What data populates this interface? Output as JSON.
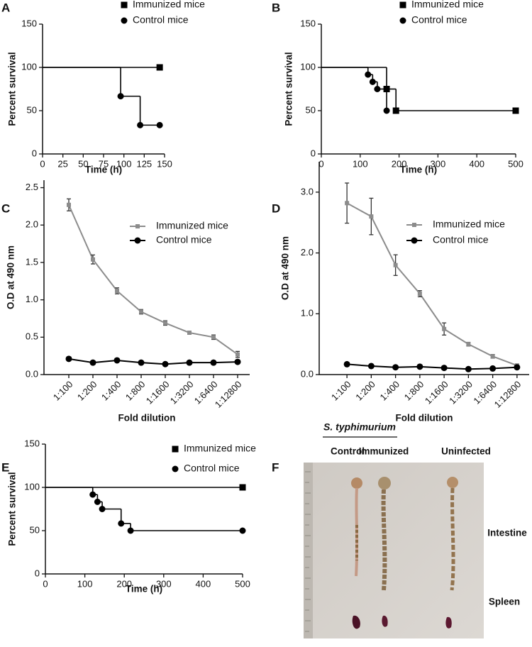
{
  "chart_data": [
    {
      "type": "step",
      "panel": "A",
      "x_label": "Time (h)",
      "y_label": "Percent survival",
      "xlim": [
        0,
        150
      ],
      "xticks": [
        0,
        25,
        50,
        75,
        100,
        125,
        150
      ],
      "ylim": [
        0,
        150
      ],
      "yticks": [
        0,
        50,
        100,
        150
      ],
      "series": [
        {
          "name": "Immunized mice",
          "color": "#000000",
          "marker": "square",
          "x": [
            0,
            144
          ],
          "values": [
            100,
            100
          ]
        },
        {
          "name": "Control mice",
          "color": "#000000",
          "marker": "circle",
          "x": [
            0,
            96,
            120,
            144
          ],
          "values": [
            100,
            66.7,
            33.3,
            33.3
          ]
        }
      ]
    },
    {
      "type": "step",
      "panel": "B",
      "x_label": "Time (h)",
      "y_label": "Percent survival",
      "xlim": [
        0,
        500
      ],
      "xticks": [
        0,
        100,
        200,
        300,
        400,
        500
      ],
      "ylim": [
        0,
        150
      ],
      "yticks": [
        0,
        50,
        100,
        150
      ],
      "series": [
        {
          "name": "Immunized mice",
          "color": "#000000",
          "marker": "square",
          "x": [
            0,
            168,
            192,
            500
          ],
          "values": [
            100,
            75,
            50,
            50
          ]
        },
        {
          "name": "Control mice",
          "color": "#000000",
          "marker": "circle",
          "x": [
            0,
            120,
            132,
            144,
            168
          ],
          "values": [
            100,
            91.7,
            83.3,
            75,
            50
          ]
        }
      ]
    },
    {
      "type": "line",
      "panel": "C",
      "x_label": "Fold dilution",
      "y_label": "O.D at 490 nm",
      "categories": [
        "1:100",
        "1:200",
        "1:400",
        "1:800",
        "1:1600",
        "1:3200",
        "1:6400",
        "1:12800"
      ],
      "ylim": [
        0,
        2.6
      ],
      "yticks": [
        {
          "value": 0,
          "label": "0.0"
        },
        {
          "value": 0.5,
          "label": "0.5"
        },
        {
          "value": 1,
          "label": "1.0"
        },
        {
          "value": 1.5,
          "label": "1.5"
        },
        {
          "value": 2,
          "label": "2.0"
        },
        {
          "value": 2.5,
          "label": "2.5"
        }
      ],
      "series": [
        {
          "name": "Immunized mice",
          "color": "#8c8c8c",
          "marker": "square",
          "values": [
            2.27,
            1.54,
            1.12,
            0.84,
            0.69,
            0.56,
            0.5,
            0.27
          ],
          "errors": [
            0.08,
            0.06,
            0.04,
            0.03,
            0.03,
            0.02,
            0.03,
            0.04
          ]
        },
        {
          "name": "Control mice",
          "color": "#000000",
          "marker": "circle",
          "values": [
            0.21,
            0.16,
            0.19,
            0.16,
            0.14,
            0.16,
            0.16,
            0.17
          ]
        }
      ]
    },
    {
      "type": "line",
      "panel": "D",
      "x_label": "Fold dilution",
      "y_label": "O.D at 490 nm",
      "categories": [
        "1:100",
        "1:200",
        "1:400",
        "1:800",
        "1:1600",
        "1:3200",
        "1:6400",
        "1:12800"
      ],
      "ylim": [
        0,
        3.5
      ],
      "yticks": [
        {
          "value": 0,
          "label": "0.0"
        },
        {
          "value": 1,
          "label": "1.0"
        },
        {
          "value": 2,
          "label": "2.0"
        },
        {
          "value": 3,
          "label": "3.0"
        }
      ],
      "series": [
        {
          "name": "Immunized mice",
          "color": "#8c8c8c",
          "marker": "square",
          "values": [
            2.82,
            2.6,
            1.8,
            1.33,
            0.75,
            0.5,
            0.3,
            0.15
          ],
          "errors": [
            0.33,
            0.3,
            0.17,
            0.05,
            0.1,
            0.03,
            0.03,
            0.02
          ]
        },
        {
          "name": "Control mice",
          "color": "#000000",
          "marker": "circle",
          "values": [
            0.17,
            0.14,
            0.12,
            0.13,
            0.11,
            0.09,
            0.1,
            0.12
          ],
          "errors": [
            0.02,
            0.02,
            0.02,
            0.02,
            0.02,
            0.02,
            0.02,
            0.02
          ]
        }
      ]
    },
    {
      "type": "step",
      "panel": "E",
      "x_label": "Time (h)",
      "y_label": "Percent survival",
      "xlim": [
        0,
        500
      ],
      "xticks": [
        0,
        100,
        200,
        300,
        400,
        500
      ],
      "ylim": [
        0,
        150
      ],
      "yticks": [
        0,
        50,
        100,
        150
      ],
      "series": [
        {
          "name": "Immunized mice",
          "color": "#000000",
          "marker": "square",
          "x": [
            0,
            500
          ],
          "values": [
            100,
            100
          ]
        },
        {
          "name": "Control mice",
          "color": "#000000",
          "marker": "circle",
          "x": [
            0,
            120,
            132,
            144,
            192,
            216,
            500
          ],
          "values": [
            100,
            91.7,
            83.3,
            75,
            58.3,
            50,
            50
          ]
        }
      ]
    }
  ],
  "figure_f": {
    "panel": "F",
    "group": "S. typhimurium",
    "columns": [
      "Control",
      "Immunized",
      "Uninfected"
    ],
    "rows": [
      "Intestine",
      "Spleen"
    ]
  }
}
